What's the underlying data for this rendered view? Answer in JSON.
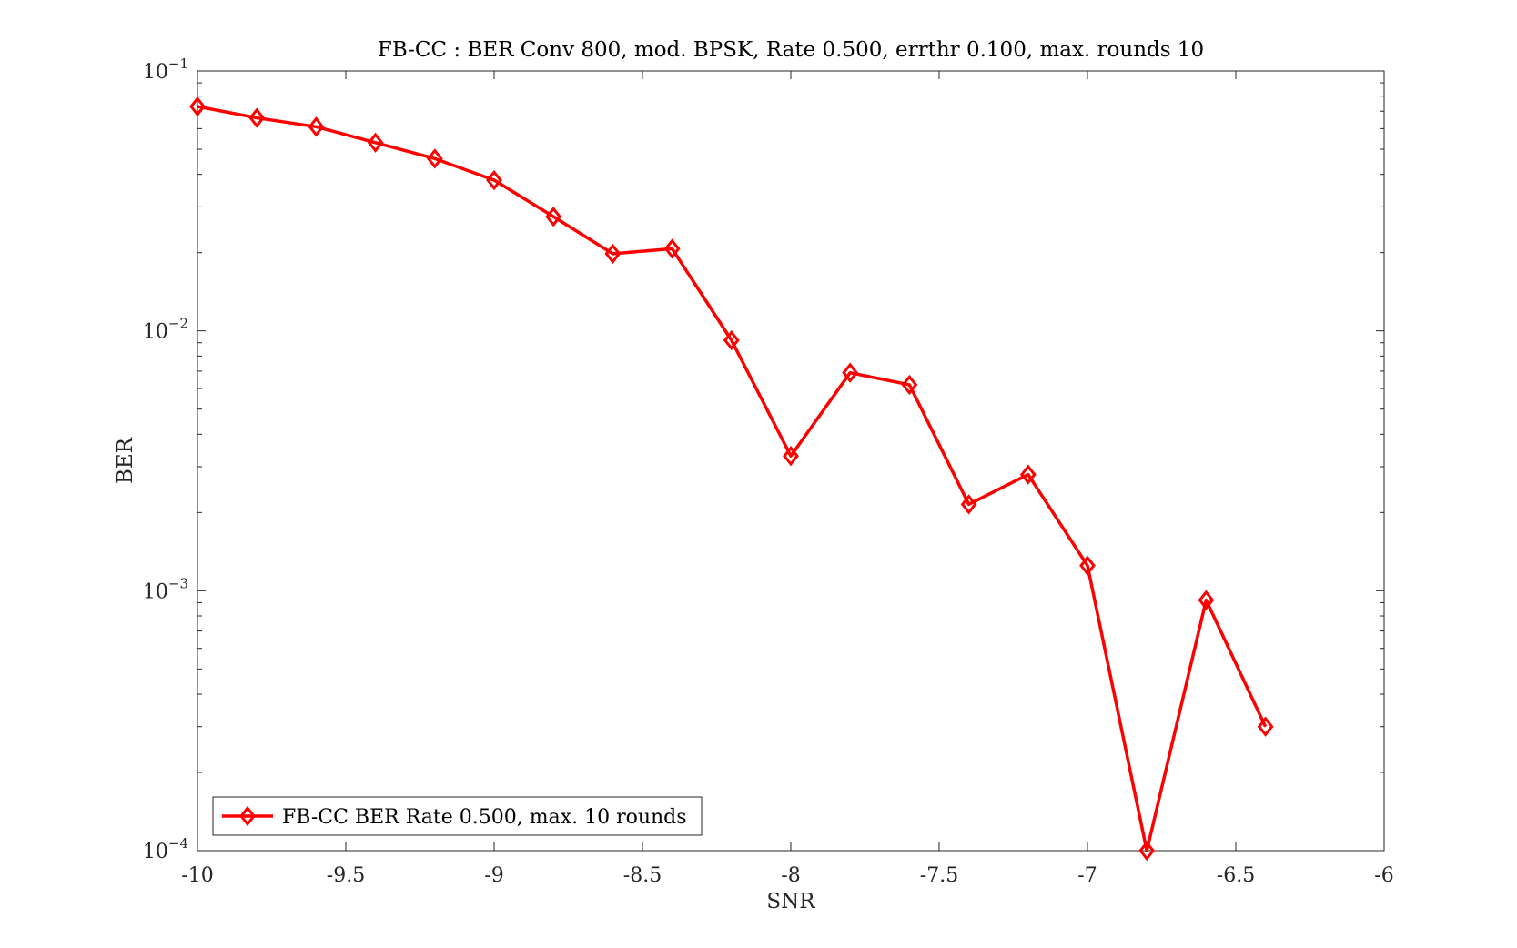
{
  "chart_data": {
    "type": "line",
    "title": "FB-CC : BER Conv 800, mod. BPSK, Rate 0.500, errthr 0.100, max. rounds 10",
    "xlabel": "SNR",
    "ylabel": "BER",
    "xlim": [
      -10,
      -6
    ],
    "ylim": [
      0.0001,
      0.1
    ],
    "yscale": "log",
    "grid": false,
    "legend_position": "bottom-left",
    "x_ticks": [
      -10,
      -9.5,
      -9,
      -8.5,
      -8,
      -7.5,
      -7,
      -6.5,
      -6
    ],
    "x_tick_labels": [
      "-10",
      "-9.5",
      "-9",
      "-8.5",
      "-8",
      "-7.5",
      "-7",
      "-6.5",
      "-6"
    ],
    "y_ticks": [
      {
        "value": 0.1,
        "base": "10",
        "exp": "−1"
      },
      {
        "value": 0.01,
        "base": "10",
        "exp": "−2"
      },
      {
        "value": 0.001,
        "base": "10",
        "exp": "−3"
      },
      {
        "value": 0.0001,
        "base": "10",
        "exp": "−4"
      }
    ],
    "series": [
      {
        "name": "FB-CC BER Rate 0.500, max. 10 rounds",
        "color": "#ff0000",
        "marker": "diamond",
        "x": [
          -10,
          -9.8,
          -9.6,
          -9.4,
          -9.2,
          -9,
          -8.8,
          -8.6,
          -8.4,
          -8.2,
          -8,
          -7.8,
          -7.6,
          -7.4,
          -7.2,
          -7,
          -6.8,
          -6.6,
          -6.4
        ],
        "y": [
          0.073,
          0.066,
          0.061,
          0.053,
          0.046,
          0.038,
          0.0275,
          0.0198,
          0.0207,
          0.0092,
          0.0033,
          0.0069,
          0.0062,
          0.00215,
          0.0028,
          0.00125,
          0.0001,
          0.00092,
          0.0003
        ]
      }
    ]
  }
}
